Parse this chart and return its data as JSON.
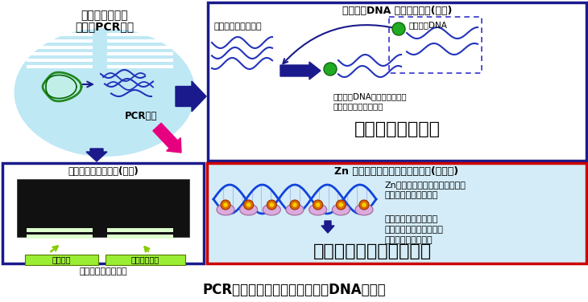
{
  "title": "PCR増幅による病原性微生物のDNA検出法",
  "title_fontsize": 12,
  "bg_color": "#ffffff",
  "tl_text1": "微生物の標的遺",
  "tl_text2": "伝子のPCR増幅",
  "tl_pcr": "PCR産物",
  "tr_title": "プローブDNA を用いた検出(従来)",
  "tr_text1": "二本鎖の解離が必須",
  "tr_probe": "プローブDNA",
  "tr_text3": "プローブDNAより元の二本鎖",
  "tr_text4": "のほうが会合しやすい",
  "tr_conclusion": "煩雑で効率が悪い",
  "bl_title": "電気泳動による確認(従来)",
  "bl_label1": "標的産物",
  "bl_label2": "非特異増幅物",
  "bl_sub": "見分けがつかない！",
  "br_title": "Zn フィンガー蛋白質による検出(本申請)",
  "br_text1": "Znフィンガー蛋白質は二本鎖に",
  "br_text2": "配列特異的に直接結合",
  "br_text3": "二本鎖の解離過程が必",
  "br_text4": "要なく、かつ強い結合能",
  "br_text5": "で効率よく結合する",
  "br_conclusion": "迅速・簡便な検出が可能",
  "dark_blue": "#1a1a8c",
  "pink": "#e6007f",
  "red": "#cc0000",
  "light_blue_ellipse": "#bfe8f5",
  "light_blue_br": "#d4ecf7",
  "gel_black": "#111111",
  "band_white": "#ffffff",
  "band_bright": "#e8ffe8",
  "label_green": "#99ee33",
  "arrow_green": "#88cc00"
}
